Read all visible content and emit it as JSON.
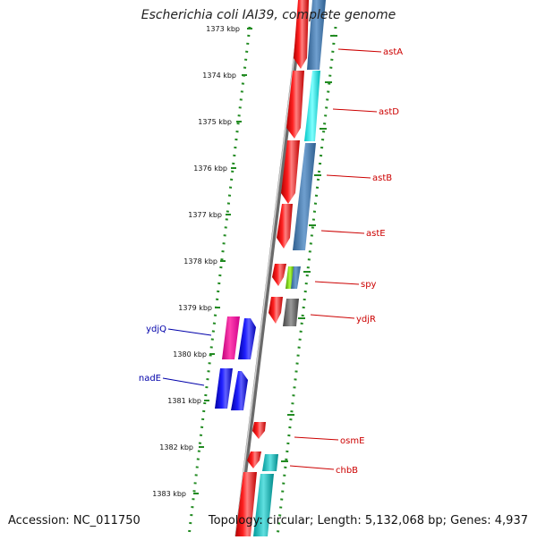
{
  "title": "Escherichia coli IAI39, complete genome",
  "accession": "Accession: NC_011750",
  "topology": "Topology: circular; Length: 5,132,068 bp; Genes: 4,937",
  "colors": {
    "forward_gene": "#ff0000",
    "reverse_gene": "#0000ff",
    "label_forward": "#cc0000",
    "label_reverse": "#0000aa",
    "tick": "#228b22",
    "backbone": "#808080"
  },
  "ruler": [
    {
      "label": "1373 kbp"
    },
    {
      "label": "1374 kbp"
    },
    {
      "label": "1375 kbp"
    },
    {
      "label": "1376 kbp"
    },
    {
      "label": "1377 kbp"
    },
    {
      "label": "1378 kbp"
    },
    {
      "label": "1379 kbp"
    },
    {
      "label": "1380 kbp"
    },
    {
      "label": "1381 kbp"
    },
    {
      "label": "1382 kbp"
    },
    {
      "label": "1383 kbp"
    }
  ],
  "right_labels": [
    "astA",
    "astD",
    "astB",
    "astE",
    "spy",
    "ydjR",
    "osmE",
    "chbB"
  ],
  "left_labels": [
    "ydjQ",
    "nadE"
  ]
}
